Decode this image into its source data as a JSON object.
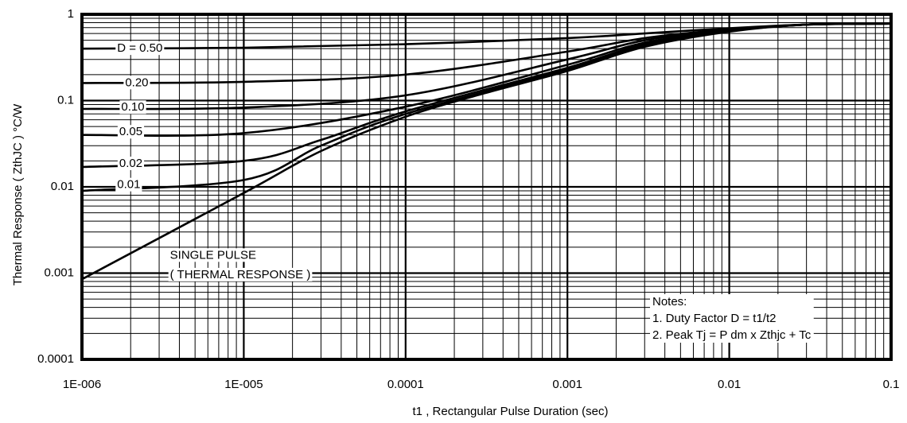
{
  "chart_data": {
    "type": "line",
    "xlabel": "t1 , Rectangular Pulse Duration (sec)",
    "ylabel": "Thermal Response ( ZthJC ) °C/W",
    "x_scale": "log",
    "y_scale": "log",
    "xlim": [
      1e-06,
      0.1
    ],
    "ylim": [
      0.0001,
      1
    ],
    "grid": true,
    "x_ticks": [
      {
        "value": 1e-06,
        "label": "1E-006"
      },
      {
        "value": 1e-05,
        "label": "1E-005"
      },
      {
        "value": 0.0001,
        "label": "0.0001"
      },
      {
        "value": 0.001,
        "label": "0.001"
      },
      {
        "value": 0.01,
        "label": "0.01"
      },
      {
        "value": 0.1,
        "label": "0.1"
      }
    ],
    "y_ticks": [
      {
        "value": 1,
        "label": "1"
      },
      {
        "value": 0.1,
        "label": "0.1"
      },
      {
        "value": 0.01,
        "label": "0.01"
      },
      {
        "value": 0.001,
        "label": "0.001"
      },
      {
        "value": 0.0001,
        "label": "0.0001"
      }
    ],
    "series": [
      {
        "name": "D = 0.50",
        "x": [
          1e-06,
          1e-05,
          0.0001,
          0.001,
          0.003,
          0.01,
          0.03,
          0.1
        ],
        "y": [
          0.4,
          0.41,
          0.45,
          0.53,
          0.6,
          0.69,
          0.76,
          0.78
        ]
      },
      {
        "name": "0.20",
        "x": [
          1e-06,
          1e-05,
          0.0001,
          0.001,
          0.003,
          0.01,
          0.03,
          0.1
        ],
        "y": [
          0.16,
          0.165,
          0.2,
          0.37,
          0.53,
          0.67,
          0.76,
          0.78
        ]
      },
      {
        "name": "0.10",
        "x": [
          1e-06,
          1e-05,
          0.0001,
          0.001,
          0.003,
          0.01,
          0.03,
          0.1
        ],
        "y": [
          0.08,
          0.083,
          0.115,
          0.3,
          0.5,
          0.66,
          0.76,
          0.78
        ]
      },
      {
        "name": "0.05",
        "x": [
          1e-06,
          1e-05,
          0.0001,
          0.001,
          0.003,
          0.01,
          0.03,
          0.1
        ],
        "y": [
          0.04,
          0.042,
          0.085,
          0.26,
          0.47,
          0.65,
          0.76,
          0.78
        ]
      },
      {
        "name": "0.02",
        "x": [
          1e-06,
          1e-05,
          3e-05,
          0.0001,
          0.001,
          0.003,
          0.01,
          0.03,
          0.1
        ],
        "y": [
          0.017,
          0.02,
          0.035,
          0.075,
          0.24,
          0.45,
          0.64,
          0.76,
          0.78
        ]
      },
      {
        "name": "0.01",
        "x": [
          1e-06,
          1e-05,
          3e-05,
          0.0001,
          0.001,
          0.003,
          0.01,
          0.03,
          0.1
        ],
        "y": [
          0.009,
          0.012,
          0.03,
          0.07,
          0.23,
          0.44,
          0.64,
          0.76,
          0.78
        ]
      },
      {
        "name": "SINGLE PULSE ( THERMAL RESPONSE )",
        "x": [
          1e-06,
          1e-05,
          3e-05,
          0.0001,
          0.0003,
          0.001,
          0.003,
          0.01,
          0.03,
          0.1
        ],
        "y": [
          0.00085,
          0.0085,
          0.026,
          0.065,
          0.12,
          0.22,
          0.42,
          0.63,
          0.76,
          0.78
        ]
      }
    ],
    "annotations": [
      {
        "text": "D = 0.50",
        "x": 1.65e-06,
        "y": 0.4
      },
      {
        "text": "0.20",
        "x": 1.85e-06,
        "y": 0.16
      },
      {
        "text": "0.10",
        "x": 1.75e-06,
        "y": 0.083
      },
      {
        "text": "0.05",
        "x": 1.7e-06,
        "y": 0.043
      },
      {
        "text": "0.02",
        "x": 1.7e-06,
        "y": 0.0185
      },
      {
        "text": "0.01",
        "x": 1.65e-06,
        "y": 0.0105
      },
      {
        "text": "SINGLE PULSE",
        "x": 3.5e-06,
        "y": 0.0016
      },
      {
        "text": "( THERMAL RESPONSE )",
        "x": 3.5e-06,
        "y": 0.00095
      }
    ],
    "notes": {
      "title": "Notes:",
      "lines": [
        "1. Duty Factor D = t1/t2",
        "2. Peak Tj = P dm x Zthjc + Tc"
      ]
    }
  }
}
